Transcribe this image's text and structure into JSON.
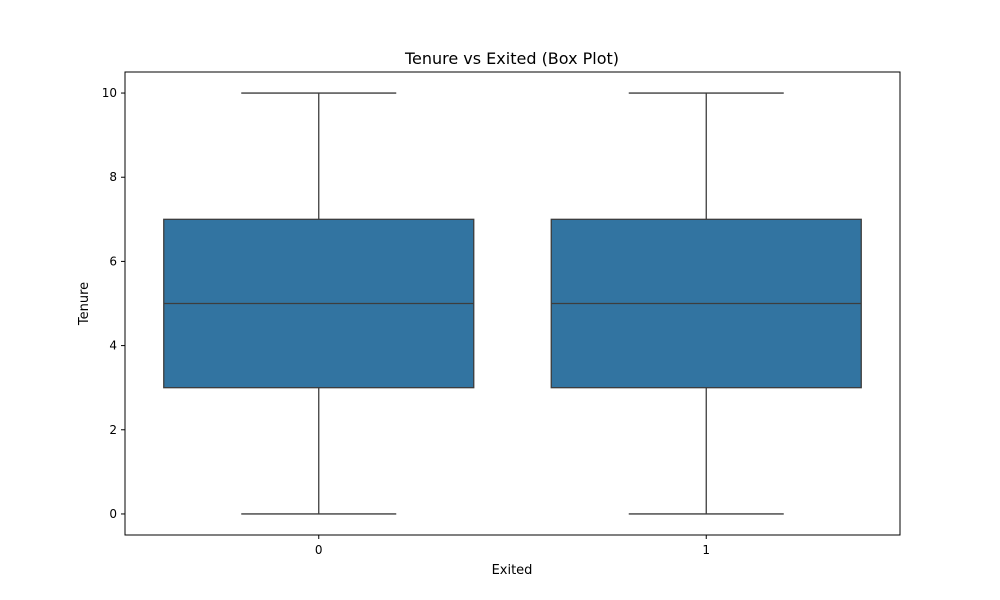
{
  "chart_data": {
    "type": "box",
    "title": "Tenure vs Exited (Box Plot)",
    "xlabel": "Exited",
    "ylabel": "Tenure",
    "categories": [
      "0",
      "1"
    ],
    "boxes": [
      {
        "category": "0",
        "min": 0,
        "q1": 3,
        "median": 5,
        "q3": 7,
        "max": 10
      },
      {
        "category": "1",
        "min": 0,
        "q1": 3,
        "median": 5,
        "q3": 7,
        "max": 10
      }
    ],
    "yticks": [
      0,
      2,
      4,
      6,
      8,
      10
    ],
    "ylim": [
      -0.5,
      10.5
    ],
    "grid": false,
    "colors": {
      "box_fill": "#3274a1",
      "line": "#3d3d3d"
    }
  }
}
